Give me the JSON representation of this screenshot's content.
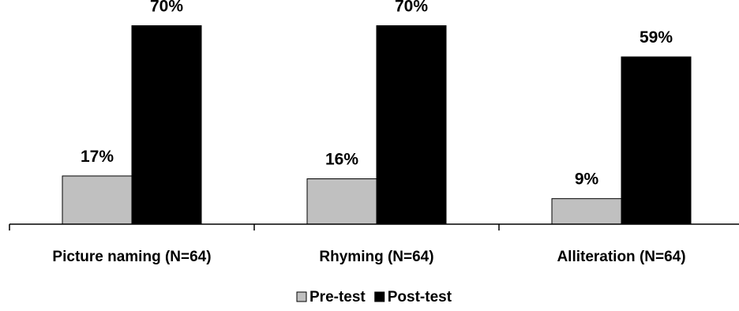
{
  "chart_data": {
    "type": "bar",
    "categories": [
      "Picture naming (N=64)",
      "Rhyming (N=64)",
      "Alliteration (N=64)"
    ],
    "series": [
      {
        "name": "Pre-test",
        "values": [
          17,
          16,
          9
        ],
        "labels": [
          "17%",
          "16%",
          "9%"
        ],
        "color": "#c0c0c0"
      },
      {
        "name": "Post-test",
        "values": [
          70,
          70,
          59
        ],
        "labels": [
          "70%",
          "70%",
          "59%"
        ],
        "color": "#000000"
      }
    ],
    "ylim": [
      0,
      76
    ],
    "grid": false,
    "legend_position": "bottom"
  }
}
